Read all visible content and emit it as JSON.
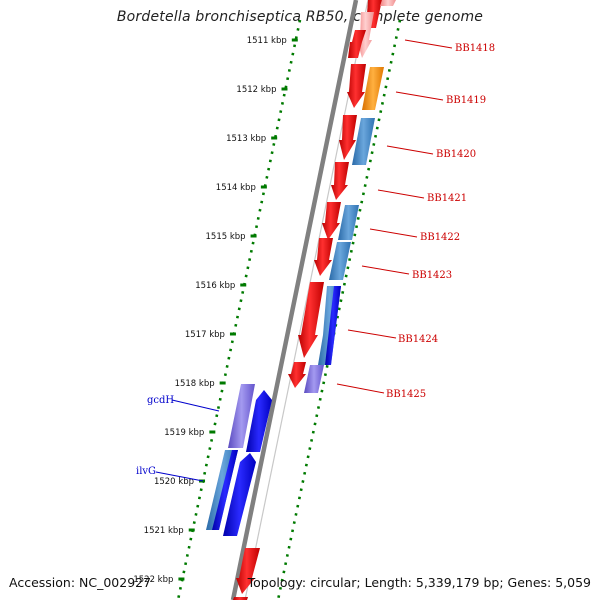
{
  "title": "Bordetella bronchiseptica RB50, complete genome",
  "footer": {
    "accession": "Accession: NC_002927",
    "summary": "Topology: circular; Length: 5,339,179 bp; Genes: 5,059"
  },
  "colors": {
    "backbone": "#7f7f7f",
    "ticks": "#007a00",
    "gene_red": "#ff0000",
    "label_red": "#cc0000",
    "label_blue": "#0000cc",
    "steelblue": "#3d7fc0",
    "blue": "#0000ee",
    "purple": "#7766dd",
    "orange": "#ff8c00"
  },
  "scale": {
    "unit": "kbp",
    "ticks": [
      {
        "kbp": 1511,
        "label": "1511 kbp"
      },
      {
        "kbp": 1512,
        "label": "1512 kbp"
      },
      {
        "kbp": 1513,
        "label": "1513 kbp"
      },
      {
        "kbp": 1514,
        "label": "1514 kbp"
      },
      {
        "kbp": 1515,
        "label": "1515 kbp"
      },
      {
        "kbp": 1516,
        "label": "1516 kbp"
      },
      {
        "kbp": 1517,
        "label": "1517 kbp"
      },
      {
        "kbp": 1518,
        "label": "1518 kbp"
      },
      {
        "kbp": 1519,
        "label": "1519 kbp"
      },
      {
        "kbp": 1520,
        "label": "1520 kbp"
      },
      {
        "kbp": 1521,
        "label": "1521 kbp"
      },
      {
        "kbp": 1522,
        "label": "1522 kbp"
      }
    ]
  },
  "gene_labels": {
    "right": [
      "BB1418",
      "BB1419",
      "BB1420",
      "BB1421",
      "BB1422",
      "BB1423",
      "BB1424",
      "BB1425"
    ],
    "left": [
      "gcdH",
      "ilvG"
    ]
  }
}
